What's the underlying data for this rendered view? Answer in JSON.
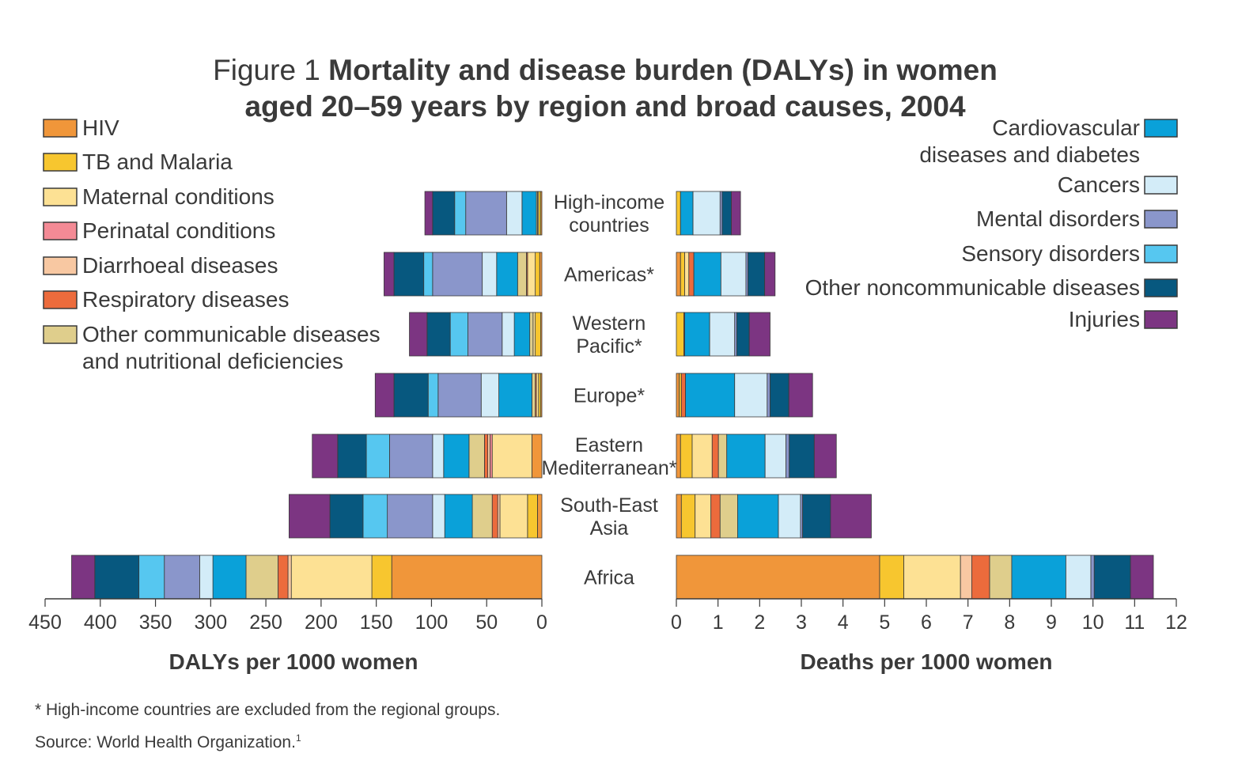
{
  "title": {
    "prefix": "Figure 1",
    "line1": "Mortality and disease burden (DALYs) in women",
    "line2": "aged 20–59 years by region and broad causes, 2004"
  },
  "footnotes": {
    "asterisk": "* High-income countries are excluded from the regional groups.",
    "source": "Source: World Health Organization.",
    "source_ref": "1"
  },
  "colors": {
    "hiv": "#f0963a",
    "tb_malaria": "#f7c62f",
    "maternal": "#fde194",
    "perinatal": "#f48a95",
    "diarrhoeal": "#f8c8a2",
    "respiratory": "#ec6b3c",
    "other_comm": "#dfce8c",
    "cardio": "#0aa1d9",
    "cancers": "#d3ecf8",
    "mental": "#8a96cb",
    "sensory": "#56c7f0",
    "other_ncd": "#07587f",
    "injuries": "#7c3582"
  },
  "chart_data": {
    "type": "bar",
    "orientation": "horizontal",
    "stacked": true,
    "categories": [
      [
        "High-income",
        "countries"
      ],
      [
        "Americas*"
      ],
      [
        "Western",
        "Pacific*"
      ],
      [
        "Europe*"
      ],
      [
        "Eastern",
        "Mediterranean*"
      ],
      [
        "South-East",
        "Asia"
      ],
      [
        "Africa"
      ]
    ],
    "legend_left": [
      {
        "key": "hiv",
        "label": [
          "HIV"
        ]
      },
      {
        "key": "tb_malaria",
        "label": [
          "TB and Malaria"
        ]
      },
      {
        "key": "maternal",
        "label": [
          "Maternal conditions"
        ]
      },
      {
        "key": "perinatal",
        "label": [
          "Perinatal conditions"
        ]
      },
      {
        "key": "diarrhoeal",
        "label": [
          "Diarrhoeal diseases"
        ]
      },
      {
        "key": "respiratory",
        "label": [
          "Respiratory diseases"
        ]
      },
      {
        "key": "other_comm",
        "label": [
          "Other communicable diseases",
          "and nutritional deficiencies"
        ]
      }
    ],
    "legend_right": [
      {
        "key": "cardio",
        "label": [
          "Cardiovascular",
          "diseases and diabetes"
        ]
      },
      {
        "key": "cancers",
        "label": [
          "Cancers"
        ]
      },
      {
        "key": "mental",
        "label": [
          "Mental disorders"
        ]
      },
      {
        "key": "sensory",
        "label": [
          "Sensory disorders"
        ]
      },
      {
        "key": "other_ncd",
        "label": [
          "Other noncommunicable diseases"
        ]
      },
      {
        "key": "injuries",
        "label": [
          "Injuries"
        ]
      }
    ],
    "series_order": [
      "hiv",
      "tb_malaria",
      "maternal",
      "perinatal",
      "diarrhoeal",
      "respiratory",
      "other_comm",
      "cardio",
      "cancers",
      "mental",
      "sensory",
      "other_ncd",
      "injuries"
    ],
    "panels": [
      {
        "id": "dalys",
        "xlabel": "DALYs per 1000 women",
        "xlim": [
          0,
          450
        ],
        "direction": "right-to-left",
        "ticks": [
          450,
          400,
          350,
          300,
          250,
          200,
          150,
          100,
          50,
          0
        ],
        "values": [
          [
            1,
            2,
            1,
            0,
            0,
            0,
            1,
            13,
            14,
            37,
            10,
            20,
            7
          ],
          [
            2,
            4,
            7,
            0,
            0,
            1,
            8,
            19,
            13,
            45,
            8,
            27,
            9
          ],
          [
            1,
            5,
            2,
            0,
            0,
            0,
            3,
            14,
            11,
            31,
            16,
            21,
            16
          ],
          [
            1,
            2,
            2,
            0,
            0,
            1,
            3,
            30,
            16,
            39,
            9,
            31,
            17
          ],
          [
            9,
            0,
            36,
            2,
            2,
            3,
            14,
            23,
            10,
            39,
            21,
            26,
            23
          ],
          [
            4,
            9,
            25,
            0,
            2,
            5,
            18,
            25,
            11,
            41,
            22,
            30,
            37
          ],
          [
            136,
            18,
            73,
            0,
            3,
            9,
            29,
            30,
            12,
            32,
            23,
            40,
            21
          ]
        ]
      },
      {
        "id": "deaths",
        "xlabel": "Deaths per 1000 women",
        "xlim": [
          0,
          12
        ],
        "direction": "left-to-right",
        "ticks": [
          0,
          1,
          2,
          3,
          4,
          5,
          6,
          7,
          8,
          9,
          10,
          11,
          12
        ],
        "values": [
          [
            0,
            0.1,
            0,
            0,
            0,
            0,
            0,
            0.3,
            0.65,
            0.05,
            0,
            0.22,
            0.22
          ],
          [
            0.1,
            0.1,
            0.1,
            0,
            0,
            0.12,
            0,
            0.65,
            0.6,
            0.05,
            0,
            0.4,
            0.25
          ],
          [
            0,
            0.18,
            0,
            0,
            0,
            0.02,
            0,
            0.6,
            0.6,
            0.05,
            0,
            0.3,
            0.5
          ],
          [
            0.07,
            0.05,
            0,
            0,
            0,
            0.1,
            0,
            1.18,
            0.78,
            0.07,
            0,
            0.45,
            0.57
          ],
          [
            0.1,
            0.28,
            0.48,
            0,
            0,
            0.15,
            0.2,
            0.92,
            0.5,
            0.08,
            0,
            0.6,
            0.53
          ],
          [
            0.12,
            0.33,
            0.38,
            0,
            0,
            0.22,
            0.42,
            0.98,
            0.53,
            0.05,
            0,
            0.67,
            0.98
          ],
          [
            4.88,
            0.58,
            1.36,
            0,
            0.27,
            0.43,
            0.53,
            1.3,
            0.6,
            0.08,
            0,
            0.87,
            0.55
          ]
        ]
      }
    ]
  }
}
